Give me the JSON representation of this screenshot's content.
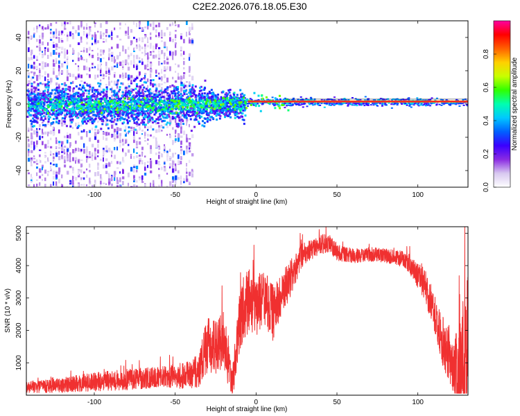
{
  "figure_title": "C2E2.2026.076.18.05.E30",
  "chart_data": [
    {
      "type": "heatmap",
      "name": "spectrogram",
      "title": "C2E2.2026.076.18.05.E30",
      "xlabel": "Height of straight line (km)",
      "ylabel": "Frequency (Hz)",
      "xlim": [
        -142,
        131
      ],
      "ylim": [
        -50,
        50
      ],
      "xticks": [
        -100,
        -50,
        0,
        50,
        100
      ],
      "yticks": [
        -40,
        -20,
        0,
        20,
        40
      ],
      "colorbar": {
        "label": "Normalized spectral amplitude",
        "range": [
          0.0,
          1.0
        ],
        "ticks": [
          0.0,
          0.2,
          0.4,
          0.6,
          0.8
        ],
        "tick_labels": [
          "0.0",
          "0.2",
          "0.4",
          "0.6",
          "0.8"
        ],
        "colormap": [
          "#ffffff",
          "#d8c8f0",
          "#8a2be2",
          "#3a00ff",
          "#0060ff",
          "#00c8ff",
          "#00ffb0",
          "#30ff00",
          "#c8ff00",
          "#ffd000",
          "#ff6000",
          "#ff0000",
          "#ff00a0"
        ]
      },
      "features": [
        {
          "description": "narrow carrier line",
          "x_range": [
            -5,
            131
          ],
          "frequency_hz": 1.5,
          "amplitude": 0.95
        },
        {
          "description": "broad scattered noise band",
          "x_range": [
            -142,
            -15
          ],
          "frequency_hz": 0,
          "width_hz": 10,
          "amplitude": 0.3
        },
        {
          "description": "sparse vertical noise streaks",
          "x_range": [
            -142,
            -40
          ],
          "frequency_span_hz": [
            -50,
            50
          ],
          "amplitude": 0.1
        }
      ]
    },
    {
      "type": "line",
      "name": "snr",
      "xlabel": "Height of straight line (km)",
      "ylabel": "SNR (10 * v/v)",
      "xlim": [
        -142,
        131
      ],
      "ylim": [
        0,
        5200
      ],
      "xticks": [
        -100,
        -50,
        0,
        50,
        100
      ],
      "yticks": [
        1000,
        2000,
        3000,
        4000,
        5000
      ],
      "color": "#f03030",
      "envelope": {
        "x": [
          -142,
          -120,
          -100,
          -80,
          -60,
          -50,
          -40,
          -35,
          -30,
          -25,
          -20,
          -15,
          -10,
          -5,
          0,
          5,
          10,
          15,
          20,
          25,
          30,
          35,
          40,
          45,
          50,
          60,
          70,
          80,
          90,
          95,
          100,
          105,
          110,
          115,
          120,
          123,
          126,
          128,
          130,
          131
        ],
        "y": [
          250,
          300,
          420,
          480,
          560,
          580,
          620,
          800,
          1600,
          1450,
          1800,
          250,
          2300,
          2900,
          2700,
          3100,
          2500,
          3000,
          3500,
          4000,
          4400,
          4500,
          4650,
          4700,
          4400,
          4300,
          4350,
          4300,
          4200,
          4050,
          3700,
          3300,
          2600,
          1700,
          1200,
          900,
          500,
          900,
          1700,
          1500
        ],
        "noise_amplitude": [
          180,
          220,
          300,
          320,
          320,
          380,
          450,
          600,
          900,
          850,
          900,
          500,
          900,
          1000,
          900,
          900,
          900,
          700,
          600,
          500,
          350,
          300,
          300,
          280,
          250,
          220,
          220,
          220,
          250,
          300,
          400,
          500,
          600,
          800,
          900,
          1000,
          1500,
          2500,
          2500,
          1500
        ]
      }
    }
  ]
}
